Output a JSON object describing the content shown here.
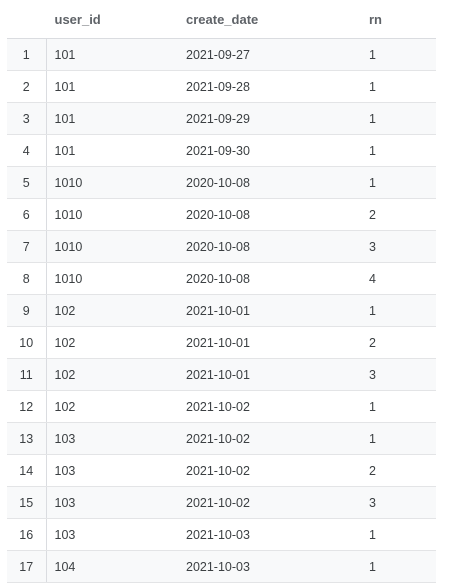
{
  "columns": [
    "user_id",
    "create_date",
    "rn"
  ],
  "rows": [
    {
      "row": "1",
      "user_id": "101",
      "create_date": "2021-09-27",
      "rn": "1"
    },
    {
      "row": "2",
      "user_id": "101",
      "create_date": "2021-09-28",
      "rn": "1"
    },
    {
      "row": "3",
      "user_id": "101",
      "create_date": "2021-09-29",
      "rn": "1"
    },
    {
      "row": "4",
      "user_id": "101",
      "create_date": "2021-09-30",
      "rn": "1"
    },
    {
      "row": "5",
      "user_id": "1010",
      "create_date": "2020-10-08",
      "rn": "1"
    },
    {
      "row": "6",
      "user_id": "1010",
      "create_date": "2020-10-08",
      "rn": "2"
    },
    {
      "row": "7",
      "user_id": "1010",
      "create_date": "2020-10-08",
      "rn": "3"
    },
    {
      "row": "8",
      "user_id": "1010",
      "create_date": "2020-10-08",
      "rn": "4"
    },
    {
      "row": "9",
      "user_id": "102",
      "create_date": "2021-10-01",
      "rn": "1"
    },
    {
      "row": "10",
      "user_id": "102",
      "create_date": "2021-10-01",
      "rn": "2"
    },
    {
      "row": "11",
      "user_id": "102",
      "create_date": "2021-10-01",
      "rn": "3"
    },
    {
      "row": "12",
      "user_id": "102",
      "create_date": "2021-10-02",
      "rn": "1"
    },
    {
      "row": "13",
      "user_id": "103",
      "create_date": "2021-10-02",
      "rn": "1"
    },
    {
      "row": "14",
      "user_id": "103",
      "create_date": "2021-10-02",
      "rn": "2"
    },
    {
      "row": "15",
      "user_id": "103",
      "create_date": "2021-10-02",
      "rn": "3"
    },
    {
      "row": "16",
      "user_id": "103",
      "create_date": "2021-10-03",
      "rn": "1"
    },
    {
      "row": "17",
      "user_id": "104",
      "create_date": "2021-10-03",
      "rn": "1"
    }
  ]
}
